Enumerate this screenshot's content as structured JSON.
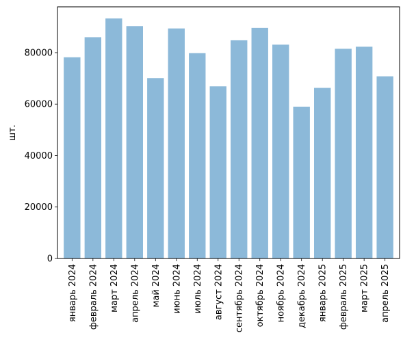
{
  "chart_data": {
    "type": "bar",
    "title": "",
    "xlabel": "",
    "ylabel": "шт.",
    "categories": [
      "январь 2024",
      "февраль 2024",
      "март 2024",
      "апрель 2024",
      "май 2024",
      "июнь 2024",
      "июль 2024",
      "август 2024",
      "сентябрь 2024",
      "октябрь 2024",
      "ноябрь 2024",
      "декабрь 2024",
      "январь 2025",
      "февраль 2025",
      "март 2025",
      "апрель 2025"
    ],
    "values": [
      78200,
      86000,
      93300,
      90300,
      70100,
      89400,
      79800,
      66900,
      84800,
      89600,
      83100,
      59000,
      66300,
      81500,
      82300,
      70800
    ],
    "ylim": [
      0,
      97800
    ],
    "yticks": [
      0,
      20000,
      40000,
      60000,
      80000
    ],
    "ytick_labels": [
      "0",
      "20000",
      "40000",
      "60000",
      "80000"
    ],
    "grid": false,
    "bar_color": "#8cb9d9"
  }
}
